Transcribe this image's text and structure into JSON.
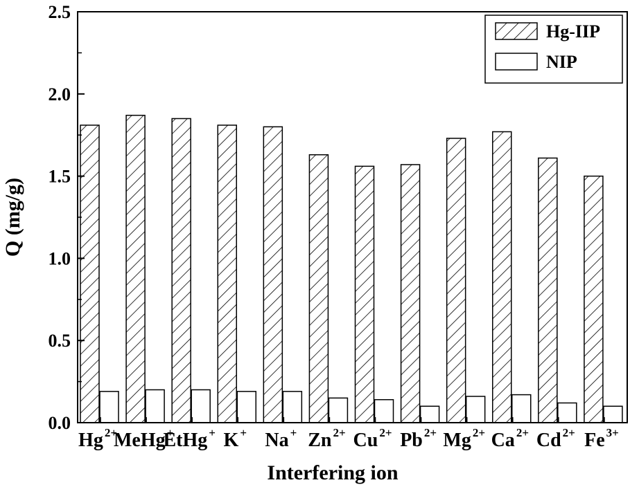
{
  "chart_data": {
    "type": "bar",
    "xlabel": "Interfering ion",
    "ylabel": "Q (mg/g)",
    "ylim": [
      0,
      2.5
    ],
    "yticks": [
      "0.0",
      "0.5",
      "1.0",
      "1.5",
      "2.0",
      "2.5"
    ],
    "categories": [
      {
        "base": "Hg",
        "sup": "2+"
      },
      {
        "base": "MeHg",
        "sup": "+"
      },
      {
        "base": "EtHg",
        "sup": "+"
      },
      {
        "base": "K",
        "sup": "+"
      },
      {
        "base": "Na",
        "sup": "+"
      },
      {
        "base": "Zn",
        "sup": "2+"
      },
      {
        "base": "Cu",
        "sup": "2+"
      },
      {
        "base": "Pb",
        "sup": "2+"
      },
      {
        "base": "Mg",
        "sup": "2+"
      },
      {
        "base": "Ca",
        "sup": "2+"
      },
      {
        "base": "Cd",
        "sup": "2+"
      },
      {
        "base": "Fe",
        "sup": "3+"
      }
    ],
    "series": [
      {
        "name": "Hg-IIP",
        "pattern": "hatched",
        "values": [
          1.81,
          1.87,
          1.85,
          1.81,
          1.8,
          1.63,
          1.56,
          1.57,
          1.73,
          1.77,
          1.61,
          1.5
        ]
      },
      {
        "name": "NIP",
        "pattern": "plain",
        "values": [
          0.19,
          0.2,
          0.2,
          0.19,
          0.19,
          0.15,
          0.14,
          0.1,
          0.16,
          0.17,
          0.12,
          0.1
        ]
      }
    ],
    "legend_position": "top-right",
    "colors": {
      "stroke": "#000000",
      "fill": "#ffffff"
    }
  }
}
